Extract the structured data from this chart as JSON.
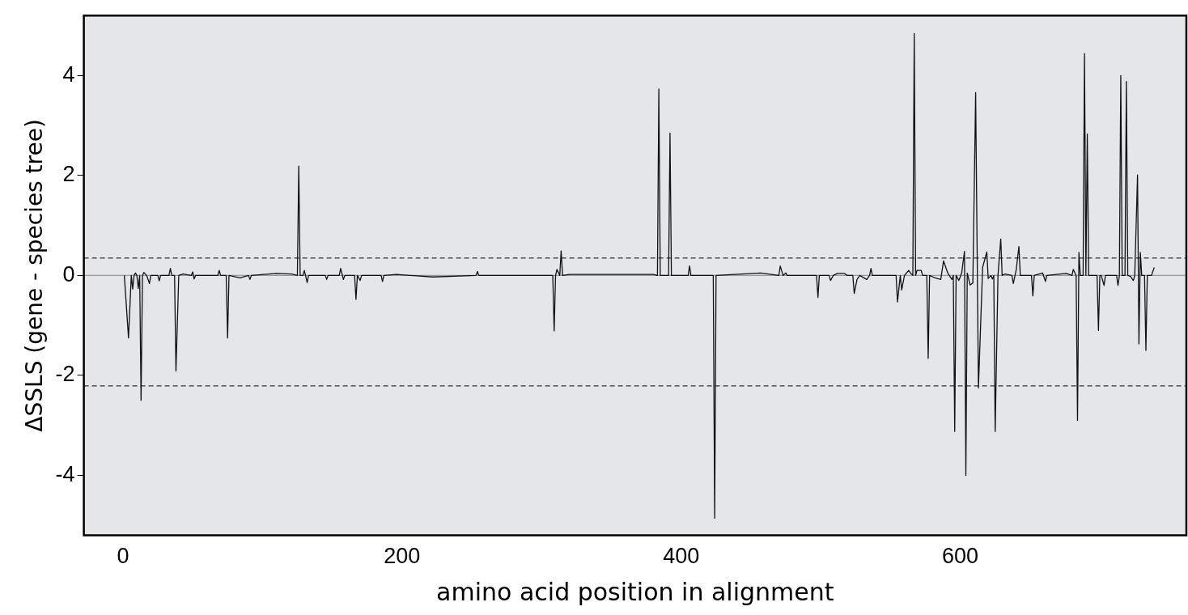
{
  "chart_data": {
    "type": "line",
    "xlabel": "amino acid position in alignment",
    "ylabel": "ΔSSLS (gene - species tree)",
    "xlim": [
      -28,
      762
    ],
    "ylim": [
      -5.2,
      5.2
    ],
    "xticks": [
      0,
      200,
      400,
      600
    ],
    "yticks": [
      -4,
      -2,
      0,
      2,
      4
    ],
    "ref_lines": [
      {
        "axis": "y",
        "value": 0,
        "color": "#999999",
        "line_style": "solid"
      },
      {
        "axis": "y",
        "value": 0.35,
        "color": "#333333",
        "line_style": "dashed"
      },
      {
        "axis": "y",
        "value": -2.21,
        "color": "#333333",
        "line_style": "dashed"
      }
    ],
    "series": [
      {
        "color": "#111111",
        "line_style": "solid",
        "x": [
          1,
          4,
          6,
          7,
          8,
          9,
          10,
          11,
          12,
          13,
          14,
          15,
          17,
          19,
          20,
          25,
          26,
          27,
          33,
          34,
          35,
          37,
          38,
          40,
          43,
          49,
          50,
          51,
          52,
          68,
          69,
          70,
          74,
          75,
          76,
          84,
          90,
          91,
          92,
          110,
          121,
          125,
          126,
          127,
          129,
          130,
          132,
          133,
          145,
          146,
          147,
          155,
          156,
          158,
          159,
          166,
          167,
          168,
          170,
          171,
          185,
          186,
          187,
          196,
          222,
          253,
          254,
          255,
          308,
          309,
          310,
          311,
          313,
          314,
          315,
          320,
          340,
          344,
          362,
          380,
          383,
          384,
          385,
          391,
          392,
          393,
          405,
          406,
          407,
          423,
          424,
          425,
          457,
          470,
          471,
          473,
          475,
          476,
          497,
          498,
          499,
          506,
          507,
          509,
          512,
          514,
          517,
          519,
          523,
          524,
          526,
          528,
          533,
          535,
          536,
          537,
          554,
          555,
          557,
          558,
          560,
          563,
          564,
          566,
          567,
          568,
          569,
          572,
          573,
          576,
          577,
          578,
          582,
          586,
          588,
          591,
          594,
          595,
          596,
          597,
          599,
          601,
          603,
          604,
          605,
          607,
          609,
          611,
          613,
          616,
          619,
          620,
          622,
          623,
          624,
          625,
          627,
          629,
          630,
          632,
          637,
          638,
          640,
          642,
          643,
          651,
          652,
          653,
          659,
          661,
          662,
          676,
          680,
          681,
          683,
          684,
          685,
          686,
          688,
          689,
          690,
          691,
          692,
          698,
          699,
          700,
          701,
          703,
          704,
          712,
          713,
          714,
          715,
          716,
          718,
          719,
          720,
          722,
          724,
          725,
          727,
          728,
          729,
          730,
          732,
          733,
          734,
          737,
          739
        ],
        "values": [
          0,
          -1.25,
          0,
          -0.27,
          0,
          0.05,
          0,
          -0.26,
          0,
          -2.5,
          0,
          0.06,
          0,
          -0.16,
          0,
          0,
          -0.11,
          0,
          0,
          0.14,
          0,
          0,
          -1.91,
          0,
          0.03,
          0,
          0.07,
          -0.07,
          0,
          0,
          0.1,
          0,
          0,
          -1.25,
          0,
          -0.05,
          0,
          -0.08,
          0,
          0.04,
          0.03,
          0,
          2.19,
          0,
          0,
          0.1,
          -0.14,
          0,
          0,
          -0.08,
          0,
          0,
          0.14,
          -0.08,
          0,
          0,
          -0.48,
          0,
          -0.1,
          0,
          0,
          -0.12,
          0,
          0.02,
          -0.03,
          0,
          0.08,
          0,
          0,
          -1.11,
          0,
          0.12,
          0,
          0.49,
          0,
          0.02,
          0.02,
          0.02,
          0.02,
          0.02,
          0,
          3.73,
          0,
          0,
          2.85,
          0,
          0,
          0.19,
          0,
          0,
          -4.86,
          0,
          0.05,
          0,
          0.19,
          0,
          0.05,
          0,
          0,
          -0.44,
          0,
          0,
          -0.1,
          0,
          0.04,
          0.04,
          0.04,
          0,
          0,
          -0.36,
          -0.08,
          0,
          -0.08,
          0,
          0.14,
          0,
          0,
          -0.53,
          0,
          -0.29,
          0,
          0.1,
          0.06,
          0,
          4.84,
          0,
          0.1,
          0.1,
          0,
          0,
          -1.66,
          0,
          -0.05,
          -0.08,
          0.29,
          0.05,
          -0.08,
          0,
          -3.12,
          0,
          -0.1,
          0.05,
          0.48,
          -4.0,
          0.05,
          -0.19,
          -0.15,
          3.66,
          -2.25,
          0.16,
          0.47,
          -0.06,
          0,
          -0.07,
          0,
          -3.12,
          0,
          0.73,
          0,
          0.03,
          0,
          -0.16,
          0.1,
          0.58,
          0,
          0,
          -0.41,
          0,
          0.05,
          -0.12,
          0,
          0.04,
          0,
          0.12,
          0,
          -2.9,
          0.46,
          0,
          0,
          4.44,
          0,
          2.83,
          0,
          0,
          -1.1,
          0,
          0,
          -0.2,
          0,
          0,
          -0.2,
          0,
          4.0,
          0,
          0,
          3.88,
          0,
          -0.02,
          -0.1,
          0,
          2.01,
          -1.37,
          0.46,
          0,
          0,
          -1.5,
          0,
          0,
          0.16
        ]
      }
    ]
  }
}
